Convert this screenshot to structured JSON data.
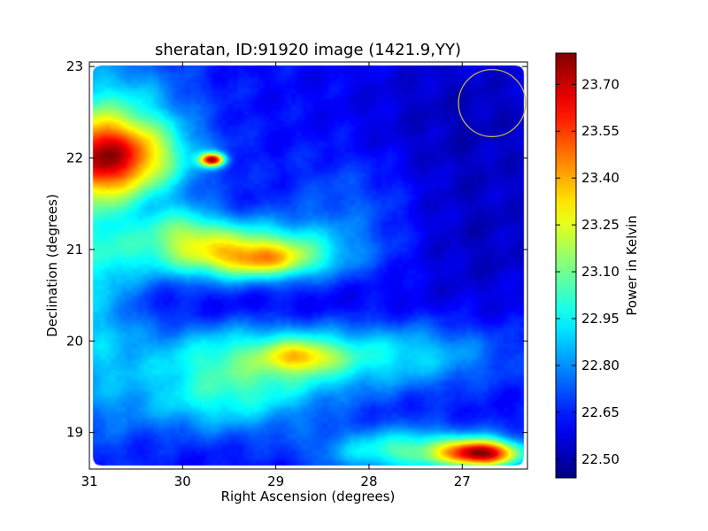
{
  "chart_data": {
    "type": "heatmap",
    "title": "sheratan, ID:91920 image (1421.9,YY)",
    "xlabel": "Right Ascension (degrees)",
    "ylabel": "Declination (degrees)",
    "xlim": [
      31.0,
      26.3
    ],
    "ylim": [
      18.6,
      23.05
    ],
    "x_ticks": [
      31,
      30,
      29,
      28,
      27
    ],
    "y_ticks": [
      19,
      20,
      21,
      22,
      23
    ],
    "colorbar": {
      "label": "Power in Kelvin",
      "range": [
        22.44,
        23.8
      ],
      "ticks": [
        22.5,
        22.65,
        22.8,
        22.95,
        23.1,
        23.25,
        23.4,
        23.55,
        23.7
      ],
      "tick_labels": [
        "22.50",
        "22.65",
        "22.80",
        "22.95",
        "23.10",
        "23.25",
        "23.40",
        "23.55",
        "23.70"
      ],
      "colormap": "jet"
    },
    "background_value": 22.62,
    "features": [
      {
        "name": "hotspot-west",
        "ra": 30.78,
        "dec": 22.02,
        "sigma_ra": 0.55,
        "sigma_dec": 0.32,
        "amp": 0.95
      },
      {
        "name": "west-edge-ridge",
        "ra": 30.95,
        "dec": 21.0,
        "sigma_ra": 0.35,
        "sigma_dec": 1.3,
        "amp": 0.28
      },
      {
        "name": "compact-source",
        "ra": 29.68,
        "dec": 21.98,
        "sigma_ra": 0.09,
        "sigma_dec": 0.05,
        "amp": 1.0
      },
      {
        "name": "band-21",
        "ra": 29.45,
        "dec": 20.98,
        "sigma_ra": 0.75,
        "sigma_dec": 0.22,
        "amp": 0.62
      },
      {
        "name": "band-21-core",
        "ra": 29.1,
        "dec": 20.88,
        "sigma_ra": 0.38,
        "sigma_dec": 0.12,
        "amp": 0.3
      },
      {
        "name": "band-21-west",
        "ra": 30.0,
        "dec": 21.25,
        "sigma_ra": 0.3,
        "sigma_dec": 0.18,
        "amp": 0.25
      },
      {
        "name": "band-20",
        "ra": 29.2,
        "dec": 19.8,
        "sigma_ra": 0.9,
        "sigma_dec": 0.3,
        "amp": 0.42
      },
      {
        "name": "band-20-core",
        "ra": 28.72,
        "dec": 19.83,
        "sigma_ra": 0.28,
        "sigma_dec": 0.12,
        "amp": 0.35
      },
      {
        "name": "band-20-east",
        "ra": 27.5,
        "dec": 19.85,
        "sigma_ra": 0.7,
        "sigma_dec": 0.25,
        "amp": 0.22
      },
      {
        "name": "band-19",
        "ra": 29.6,
        "dec": 19.3,
        "sigma_ra": 0.7,
        "sigma_dec": 0.25,
        "amp": 0.25
      },
      {
        "name": "hotspot-southeast",
        "ra": 26.78,
        "dec": 18.77,
        "sigma_ra": 0.28,
        "sigma_dec": 0.1,
        "amp": 0.95
      },
      {
        "name": "south-ridge",
        "ra": 27.5,
        "dec": 18.8,
        "sigma_ra": 0.65,
        "sigma_dec": 0.17,
        "amp": 0.45
      },
      {
        "name": "north-west-tint",
        "ra": 30.55,
        "dec": 22.75,
        "sigma_ra": 0.5,
        "sigma_dec": 0.3,
        "amp": 0.15
      },
      {
        "name": "center-mid-tint",
        "ra": 28.2,
        "dec": 21.5,
        "sigma_ra": 0.5,
        "sigma_dec": 0.4,
        "amp": 0.12
      },
      {
        "name": "northeast-cold",
        "ra": 27.0,
        "dec": 22.4,
        "sigma_ra": 0.8,
        "sigma_dec": 0.7,
        "amp": -0.1
      },
      {
        "name": "east-cold",
        "ra": 26.8,
        "dec": 21.0,
        "sigma_ra": 0.6,
        "sigma_dec": 0.5,
        "amp": -0.08
      },
      {
        "name": "south-dip",
        "ra": 29.0,
        "dec": 20.35,
        "sigma_ra": 1.0,
        "sigma_dec": 0.18,
        "amp": -0.08
      }
    ],
    "circle": {
      "ra": 26.68,
      "dec": 22.6,
      "radius_deg": 0.36,
      "color": "#c8b44a"
    }
  }
}
